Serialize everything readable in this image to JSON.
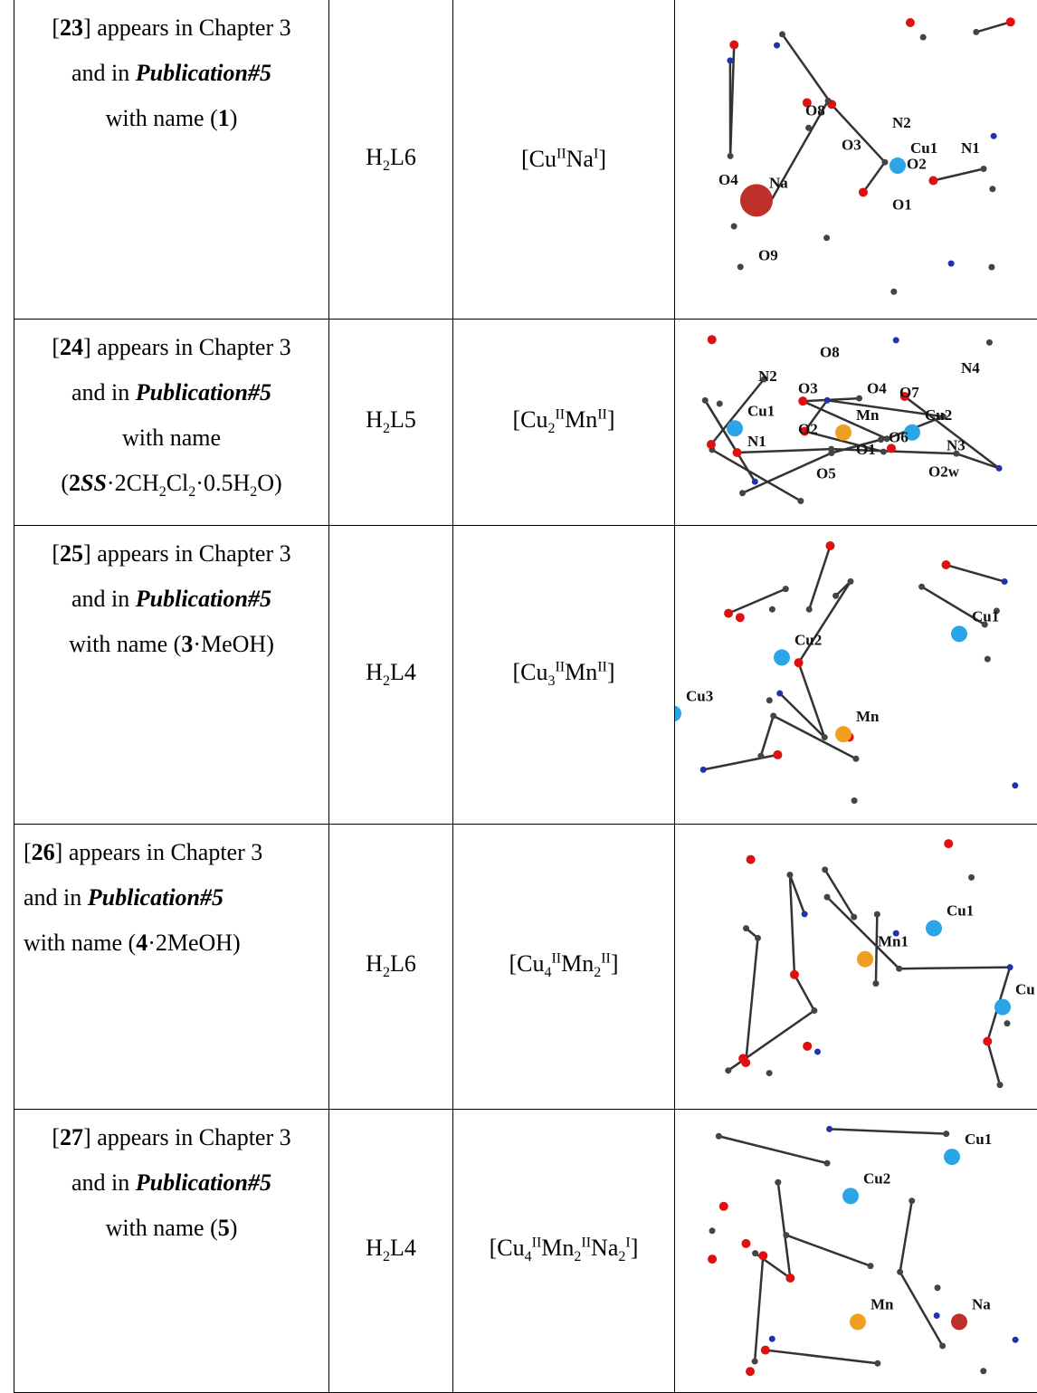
{
  "table": {
    "rows": [
      {
        "description": [
          [
            {
              "text": "["
            },
            {
              "text": "23",
              "style": "bold"
            },
            {
              "text": "] appears in Chapter 3"
            }
          ],
          [
            {
              "text": "and in "
            },
            {
              "text": "Publication#5",
              "style": "bold-italic"
            }
          ],
          [
            {
              "text": "with name ("
            },
            {
              "text": "1",
              "style": "bold"
            },
            {
              "text": ")"
            }
          ]
        ],
        "ligand": [
          {
            "text": "H"
          },
          {
            "text": "2",
            "style": "sub"
          },
          {
            "text": "L6"
          }
        ],
        "complex": [
          {
            "text": "[Cu"
          },
          {
            "text": "II",
            "style": "sup"
          },
          {
            "text": "Na"
          },
          {
            "text": "I",
            "style": "sup"
          },
          {
            "text": "]"
          }
        ],
        "structure_labels": [
          "O8",
          "N2",
          "O3",
          "Cu1",
          "N1",
          "O2",
          "O4",
          "Na",
          "O1",
          "O9"
        ]
      },
      {
        "description": [
          [
            {
              "text": "["
            },
            {
              "text": "24",
              "style": "bold"
            },
            {
              "text": "] appears in Chapter 3"
            }
          ],
          [
            {
              "text": "and in "
            },
            {
              "text": "Publication#5",
              "style": "bold-italic"
            }
          ],
          [
            {
              "text": "with name"
            }
          ],
          [
            {
              "text": "("
            },
            {
              "text": "2",
              "style": "bold"
            },
            {
              "text": "SS",
              "style": "bold-italic"
            },
            {
              "text": "·2CH"
            },
            {
              "text": "2",
              "style": "sub"
            },
            {
              "text": "Cl"
            },
            {
              "text": "2",
              "style": "sub"
            },
            {
              "text": "·0.5H"
            },
            {
              "text": "2",
              "style": "sub"
            },
            {
              "text": "O)"
            }
          ]
        ],
        "ligand": [
          {
            "text": "H"
          },
          {
            "text": "2",
            "style": "sub"
          },
          {
            "text": "L5"
          }
        ],
        "complex": [
          {
            "text": "[Cu"
          },
          {
            "text": "2",
            "style": "sub"
          },
          {
            "text": "II",
            "style": "sup"
          },
          {
            "text": "Mn"
          },
          {
            "text": "II",
            "style": "sup"
          },
          {
            "text": "]"
          }
        ],
        "structure_labels": [
          "O8",
          "N2",
          "O3",
          "O4",
          "O7",
          "N4",
          "Cu1",
          "O2",
          "Mn",
          "Cu2",
          "N1",
          "O6",
          "N3",
          "O1",
          "O5",
          "O2w"
        ]
      },
      {
        "description": [
          [
            {
              "text": "["
            },
            {
              "text": "25",
              "style": "bold"
            },
            {
              "text": "] appears in Chapter 3"
            }
          ],
          [
            {
              "text": "and in "
            },
            {
              "text": "Publication#5",
              "style": "bold-italic"
            }
          ],
          [
            {
              "text": "with name ("
            },
            {
              "text": "3",
              "style": "bold"
            },
            {
              "text": "·MeOH)"
            }
          ]
        ],
        "ligand": [
          {
            "text": "H"
          },
          {
            "text": "2",
            "style": "sub"
          },
          {
            "text": "L4"
          }
        ],
        "complex": [
          {
            "text": "[Cu"
          },
          {
            "text": "3",
            "style": "sub"
          },
          {
            "text": "II",
            "style": "sup"
          },
          {
            "text": "Mn"
          },
          {
            "text": "II",
            "style": "sup"
          },
          {
            "text": "]"
          }
        ],
        "structure_labels": [
          "Cu2",
          "Cu1",
          "Cu3",
          "Mn"
        ]
      },
      {
        "description": [
          [
            {
              "text": "["
            },
            {
              "text": "26",
              "style": "bold"
            },
            {
              "text": "] appears in Chapter 3"
            }
          ],
          [
            {
              "text": "and in "
            },
            {
              "text": "Publication#5",
              "style": "bold-italic"
            }
          ],
          [
            {
              "text": "with name ("
            },
            {
              "text": "4",
              "style": "bold"
            },
            {
              "text": "·2MeOH)"
            }
          ]
        ],
        "ligand": [
          {
            "text": "H"
          },
          {
            "text": "2",
            "style": "sub"
          },
          {
            "text": "L6"
          }
        ],
        "complex": [
          {
            "text": "[Cu"
          },
          {
            "text": "4",
            "style": "sub"
          },
          {
            "text": "II",
            "style": "sup"
          },
          {
            "text": "Mn"
          },
          {
            "text": "2",
            "style": "sub"
          },
          {
            "text": "II",
            "style": "sup"
          },
          {
            "text": "]"
          }
        ],
        "structure_labels": [
          "Cu1",
          "Mn1",
          "Cu"
        ]
      },
      {
        "description": [
          [
            {
              "text": "["
            },
            {
              "text": "27",
              "style": "bold"
            },
            {
              "text": "] appears in Chapter 3"
            }
          ],
          [
            {
              "text": "and in "
            },
            {
              "text": "Publication#5",
              "style": "bold-italic"
            }
          ],
          [
            {
              "text": "with name ("
            },
            {
              "text": "5",
              "style": "bold"
            },
            {
              "text": ")"
            }
          ]
        ],
        "ligand": [
          {
            "text": "H"
          },
          {
            "text": "2",
            "style": "sub"
          },
          {
            "text": "L4"
          }
        ],
        "complex": [
          {
            "text": "[Cu"
          },
          {
            "text": "4",
            "style": "sub"
          },
          {
            "text": "II",
            "style": "sup"
          },
          {
            "text": "Mn"
          },
          {
            "text": "2",
            "style": "sub"
          },
          {
            "text": "II",
            "style": "sup"
          },
          {
            "text": "Na"
          },
          {
            "text": "2",
            "style": "sub"
          },
          {
            "text": "I",
            "style": "sup"
          },
          {
            "text": "]"
          }
        ],
        "structure_labels": [
          "Cu1",
          "Cu2",
          "Mn",
          "Na"
        ]
      }
    ]
  }
}
